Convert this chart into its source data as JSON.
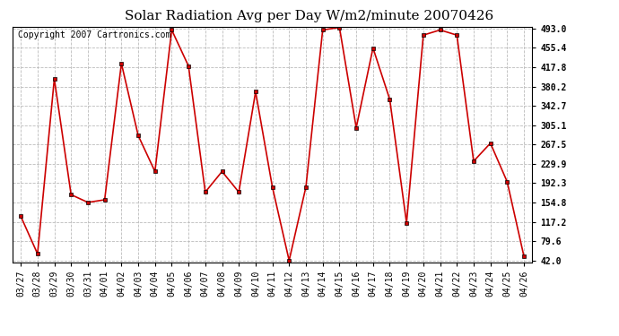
{
  "title": "Solar Radiation Avg per Day W/m2/minute 20070426",
  "copyright": "Copyright 2007 Cartronics.com",
  "labels": [
    "03/27",
    "03/28",
    "03/29",
    "03/30",
    "03/31",
    "04/01",
    "04/02",
    "04/03",
    "04/04",
    "04/05",
    "04/06",
    "04/07",
    "04/08",
    "04/09",
    "04/10",
    "04/11",
    "04/12",
    "04/13",
    "04/14",
    "04/15",
    "04/16",
    "04/17",
    "04/18",
    "04/19",
    "04/20",
    "04/21",
    "04/22",
    "04/23",
    "04/24",
    "04/25",
    "04/26"
  ],
  "values": [
    128,
    55,
    395,
    170,
    155,
    160,
    425,
    285,
    215,
    490,
    420,
    175,
    215,
    175,
    370,
    185,
    42,
    185,
    490,
    495,
    300,
    455,
    355,
    115,
    480,
    490,
    480,
    235,
    270,
    195,
    50
  ],
  "yticks": [
    42.0,
    79.6,
    117.2,
    154.8,
    192.3,
    229.9,
    267.5,
    305.1,
    342.7,
    380.2,
    417.8,
    455.4,
    493.0
  ],
  "line_color": "#cc0000",
  "marker": "s",
  "marker_size": 2.5,
  "bg_color": "#ffffff",
  "plot_bg_color": "#ffffff",
  "grid_color": "#bbbbbb",
  "title_fontsize": 11,
  "copyright_fontsize": 7,
  "tick_fontsize": 7,
  "ylim_min": 42.0,
  "ylim_max": 493.0
}
